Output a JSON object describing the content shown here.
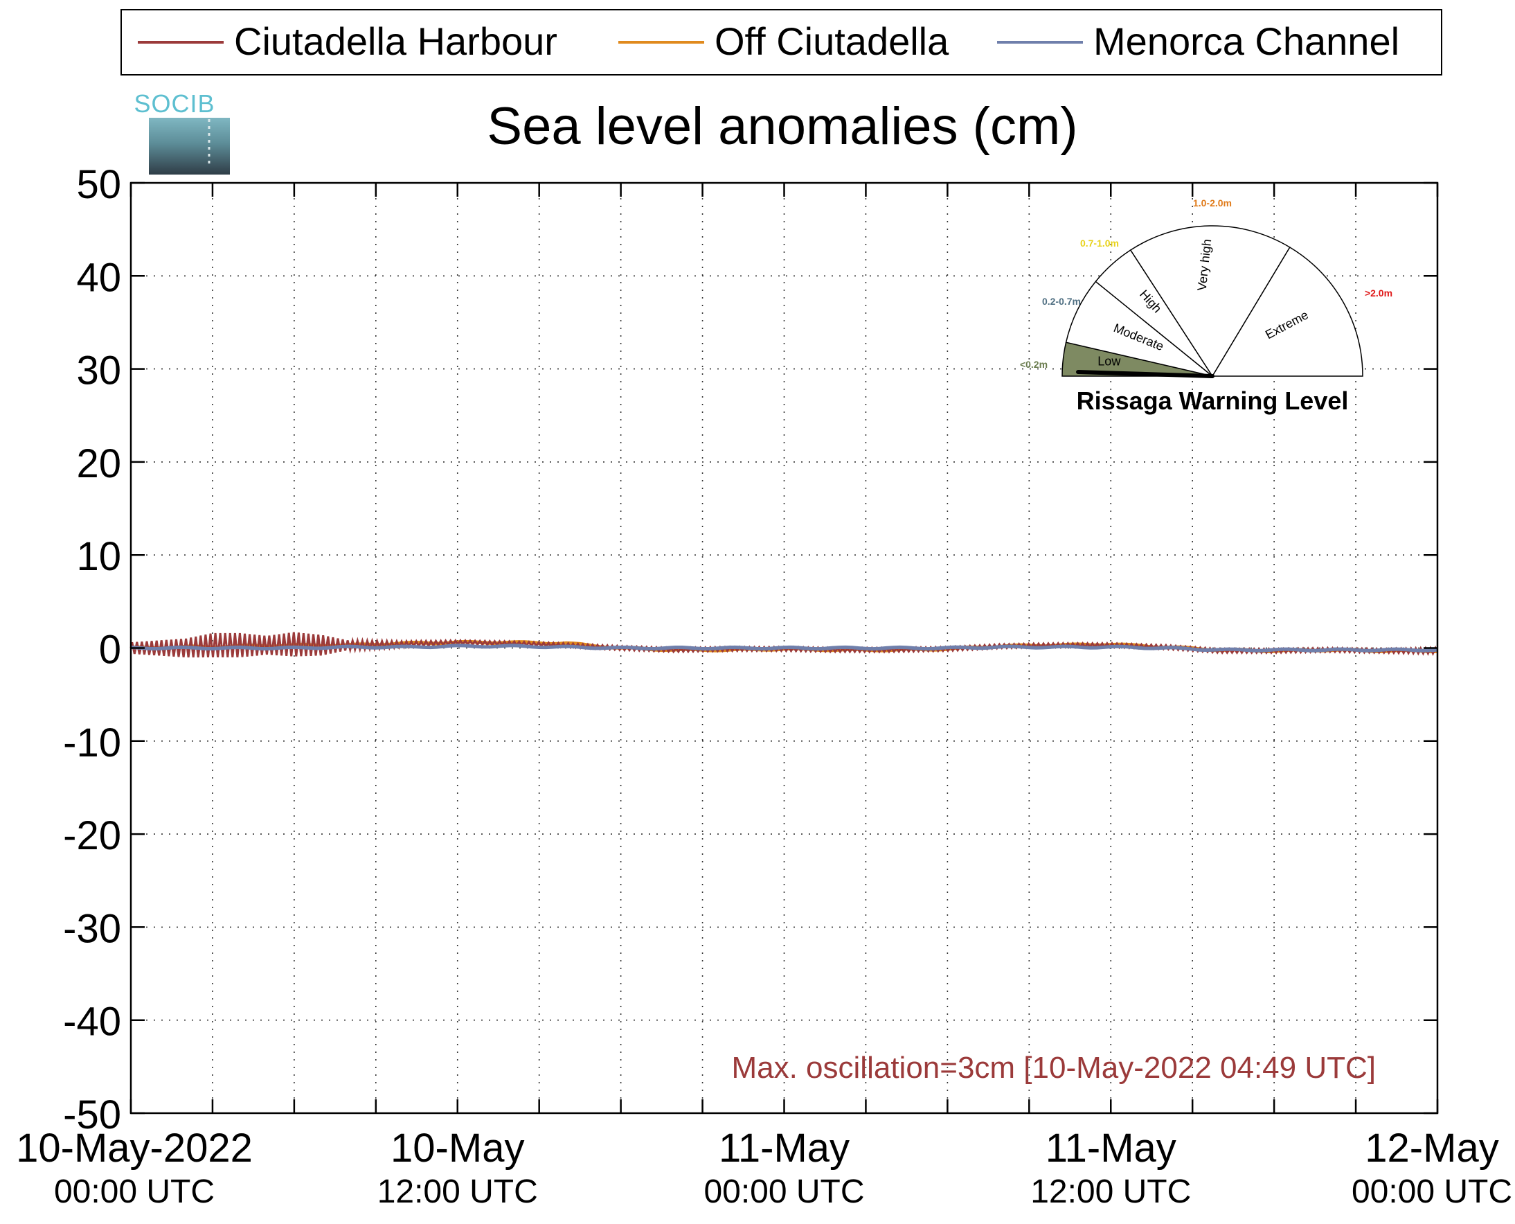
{
  "legend": {
    "items": [
      {
        "label": "Ciutadella Harbour",
        "color": "#9b3a3a"
      },
      {
        "label": "Off Ciutadella",
        "color": "#e08a1e"
      },
      {
        "label": "Menorca Channel",
        "color": "#6f7fab"
      }
    ]
  },
  "logo": {
    "text": "SOCIB"
  },
  "annotation": {
    "text": "Max. oscillation=3cm [10-May-2022 04:49 UTC]",
    "color": "#9b3a3a"
  },
  "gauge": {
    "title": "Rissaga Warning Level",
    "sectors": [
      {
        "name": "Low",
        "range": "<0.2m",
        "range_color": "#6b7d4f",
        "fill": "#7e8a62"
      },
      {
        "name": "Moderate",
        "range": "0.2-0.7m",
        "range_color": "#4f6f82",
        "fill": "#ffffff"
      },
      {
        "name": "High",
        "range": "0.7-1.0m",
        "range_color": "#e8d21a",
        "fill": "#ffffff"
      },
      {
        "name": "Very high",
        "range": "1.0-2.0m",
        "range_color": "#e07b1a",
        "fill": "#ffffff"
      },
      {
        "name": "Extreme",
        "range": ">2.0m",
        "range_color": "#e01a1a",
        "fill": "#ffffff"
      }
    ],
    "active_level": "Low"
  },
  "chart_data": {
    "type": "line",
    "title": "Sea level anomalies (cm)",
    "xlabel": "",
    "ylabel": "",
    "ylim": [
      -50,
      50
    ],
    "yticks": [
      "50",
      "40",
      "30",
      "20",
      "10",
      "0",
      "-10",
      "-20",
      "-30",
      "-40",
      "-50"
    ],
    "x_range_hours": [
      0,
      48
    ],
    "x_tick_labels": [
      {
        "line1": "10-May-2022",
        "line2": "00:00 UTC"
      },
      {
        "line1": "10-May",
        "line2": "12:00 UTC"
      },
      {
        "line1": "11-May",
        "line2": "00:00 UTC"
      },
      {
        "line1": "11-May",
        "line2": "12:00 UTC"
      },
      {
        "line1": "12-May",
        "line2": "00:00 UTC"
      }
    ],
    "grid": true,
    "legend_position": "top",
    "series": [
      {
        "name": "Ciutadella Harbour",
        "color": "#9b3a3a",
        "x": [
          0,
          2,
          3,
          4,
          5,
          6,
          7,
          8,
          10,
          12,
          14,
          16,
          18,
          20,
          22,
          24,
          26,
          28,
          30,
          32,
          34,
          36,
          38,
          40,
          42,
          44,
          46,
          48
        ],
        "y": [
          0,
          0,
          0.3,
          0.3,
          0.3,
          0.4,
          0.3,
          0.3,
          0.4,
          0.6,
          0.5,
          0.3,
          0,
          -0.2,
          -0.1,
          -0.1,
          -0.2,
          -0.2,
          -0.1,
          0.2,
          0.3,
          0.3,
          0.1,
          -0.3,
          -0.3,
          -0.2,
          -0.3,
          -0.3
        ],
        "oscillation_amplitude": [
          0.6,
          1.0,
          1.3,
          1.3,
          1.0,
          1.3,
          1.1,
          0.5,
          0.3,
          0.2,
          0.2,
          0.2,
          0.2,
          0.2,
          0.2,
          0.2,
          0.2,
          0.2,
          0.2,
          0.2,
          0.2,
          0.2,
          0.2,
          0.2,
          0.2,
          0.2,
          0.2,
          0.3
        ]
      },
      {
        "name": "Off Ciutadella",
        "color": "#e08a1e",
        "x": [
          0,
          2,
          4,
          6,
          8,
          10,
          12,
          14,
          16,
          18,
          20,
          22,
          24,
          26,
          28,
          30,
          32,
          34,
          36,
          38,
          40,
          42,
          44,
          46,
          48
        ],
        "y": [
          0,
          0.1,
          0.2,
          0.3,
          0.3,
          0.5,
          0.6,
          0.6,
          0.5,
          0,
          -0.2,
          -0.2,
          -0.1,
          -0.2,
          -0.2,
          -0.1,
          0.2,
          0.3,
          0.4,
          0.1,
          -0.2,
          -0.3,
          -0.2,
          -0.3,
          -0.3
        ]
      },
      {
        "name": "Menorca Channel",
        "color": "#6f7fab",
        "x": [
          0,
          2,
          4,
          6,
          8,
          10,
          12,
          14,
          16,
          18,
          20,
          22,
          24,
          26,
          28,
          30,
          32,
          34,
          36,
          38,
          40,
          42,
          44,
          46,
          48
        ],
        "y": [
          0,
          0,
          0,
          0,
          0.1,
          0.1,
          0.2,
          0.2,
          0.1,
          0,
          0,
          0,
          0,
          0,
          0,
          0,
          0.1,
          0.1,
          0.1,
          0,
          -0.2,
          -0.2,
          -0.2,
          -0.2,
          -0.2
        ]
      }
    ]
  }
}
